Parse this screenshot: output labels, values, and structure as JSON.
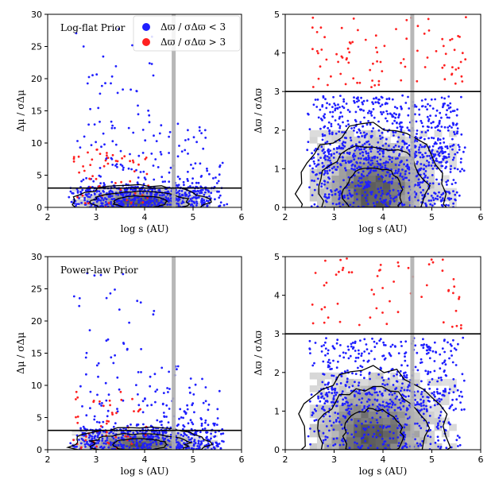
{
  "figure": {
    "legend": {
      "blue_label": "Δϖ / σΔϖ < 3",
      "red_label": "Δϖ / σΔϖ > 3"
    },
    "colors": {
      "blue": "#1f1fff",
      "red": "#ff2020",
      "line": "#000000",
      "vline": "#b0b0b0"
    }
  },
  "chart_data": [
    {
      "id": "top-left",
      "type": "scatter",
      "annotation": "Log-flat Prior",
      "xlabel": "log s (AU)",
      "ylabel": "Δμ / σΔμ",
      "xlim": [
        2,
        6
      ],
      "ylim": [
        0,
        30
      ],
      "xticks": [
        2,
        3,
        4,
        5,
        6
      ],
      "yticks": [
        0,
        5,
        10,
        15,
        20,
        25,
        30
      ],
      "hline": 3,
      "vline": 4.6,
      "has_legend": true,
      "series": [
        {
          "name": "Δϖ / σΔϖ < 3",
          "color": "blue",
          "n": 700
        },
        {
          "name": "Δϖ / σΔϖ > 3",
          "color": "red",
          "n": 60
        }
      ],
      "density_contours": true
    },
    {
      "id": "top-right",
      "type": "scatter",
      "annotation": "",
      "xlabel": "log s (AU)",
      "ylabel": "Δϖ / σΔϖ",
      "xlim": [
        2,
        6
      ],
      "ylim": [
        0,
        5
      ],
      "xticks": [
        2,
        3,
        4,
        5,
        6
      ],
      "yticks": [
        0,
        1,
        2,
        3,
        4,
        5
      ],
      "hline": 3,
      "vline": 4.6,
      "has_legend": false,
      "series": [
        {
          "name": "Δϖ / σΔϖ < 3",
          "color": "blue",
          "n": 1100
        },
        {
          "name": "Δϖ / σΔϖ > 3",
          "color": "red",
          "n": 90
        }
      ],
      "density_contours": true
    },
    {
      "id": "bottom-left",
      "type": "scatter",
      "annotation": "Power-law Prior",
      "xlabel": "log s (AU)",
      "ylabel": "Δμ / σΔμ",
      "xlim": [
        2,
        6
      ],
      "ylim": [
        0,
        30
      ],
      "xticks": [
        2,
        3,
        4,
        5,
        6
      ],
      "yticks": [
        0,
        5,
        10,
        15,
        20,
        25,
        30
      ],
      "hline": 3,
      "vline": 4.6,
      "has_legend": false,
      "series": [
        {
          "name": "Δϖ / σΔϖ < 3",
          "color": "blue",
          "n": 600
        },
        {
          "name": "Δϖ / σΔϖ > 3",
          "color": "red",
          "n": 50
        }
      ],
      "density_contours": true
    },
    {
      "id": "bottom-right",
      "type": "scatter",
      "annotation": "",
      "xlabel": "log s (AU)",
      "ylabel": "Δϖ / σΔϖ",
      "xlim": [
        2,
        6
      ],
      "ylim": [
        0,
        5
      ],
      "xticks": [
        2,
        3,
        4,
        5,
        6
      ],
      "yticks": [
        0,
        1,
        2,
        3,
        4,
        5
      ],
      "hline": 3,
      "vline": 4.6,
      "has_legend": false,
      "series": [
        {
          "name": "Δϖ / σΔϖ < 3",
          "color": "blue",
          "n": 750
        },
        {
          "name": "Δϖ / σΔϖ > 3",
          "color": "red",
          "n": 60
        }
      ],
      "density_contours": true
    }
  ]
}
